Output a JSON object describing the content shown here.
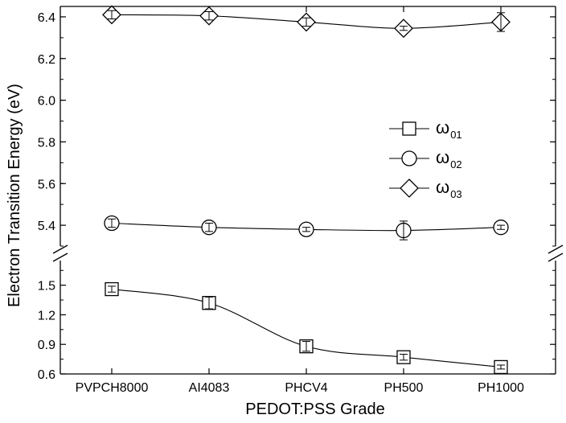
{
  "chart_data": {
    "type": "line",
    "xlabel": "PEDOT:PSS Grade",
    "ylabel": "Electron Transition Energy (eV)",
    "categories": [
      "PVPCH8000",
      "AI4083",
      "PHCV4",
      "PH500",
      "PH1000"
    ],
    "y_axis_break": true,
    "upper_panel": {
      "ylim": [
        5.3,
        6.45
      ],
      "ticks": [
        "5.4",
        "5.6",
        "5.8",
        "6.0",
        "6.2",
        "6.4"
      ]
    },
    "lower_panel": {
      "ylim": [
        0.6,
        1.75
      ],
      "ticks": [
        "0.6",
        "0.9",
        "1.2",
        "1.5"
      ]
    },
    "series": [
      {
        "name": "ω01",
        "name_base": "ω",
        "name_sub": "01",
        "marker": "square",
        "panel": "lower",
        "values": [
          1.46,
          1.32,
          0.88,
          0.77,
          0.67
        ],
        "errors": [
          0.03,
          0.06,
          0.05,
          0.03,
          0.02
        ]
      },
      {
        "name": "ω02",
        "name_base": "ω",
        "name_sub": "02",
        "marker": "circle",
        "panel": "upper",
        "values": [
          5.41,
          5.39,
          5.38,
          5.375,
          5.39
        ],
        "errors": [
          0.02,
          0.02,
          0.01,
          0.045,
          0.01
        ]
      },
      {
        "name": "ω03",
        "name_base": "ω",
        "name_sub": "03",
        "marker": "diamond",
        "panel": "upper",
        "values": [
          6.41,
          6.405,
          6.375,
          6.345,
          6.375
        ],
        "errors": [
          0.02,
          0.02,
          0.02,
          0.01,
          0.045
        ]
      }
    ],
    "legend_position": "center-right",
    "grid": false
  }
}
